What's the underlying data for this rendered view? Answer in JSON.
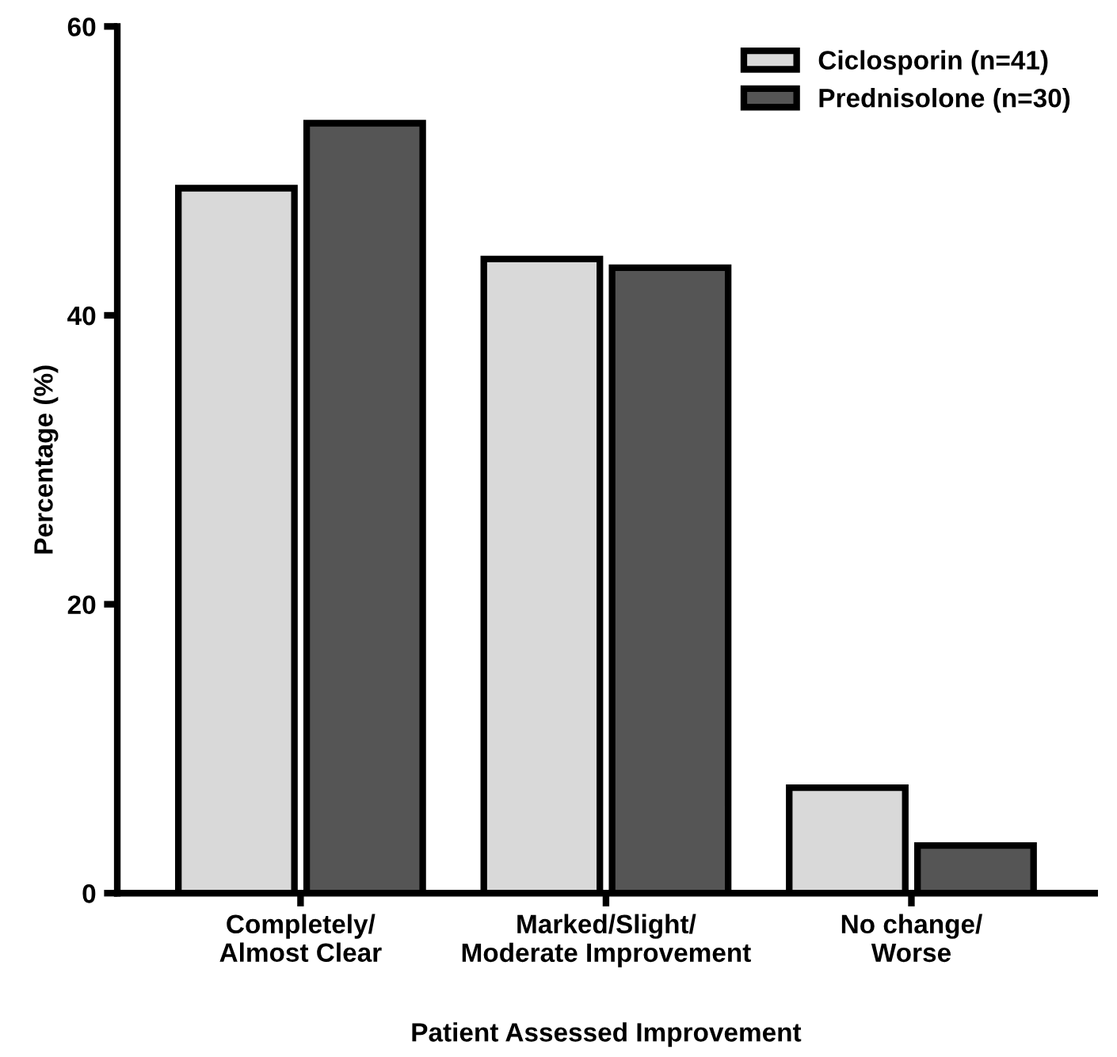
{
  "chart_data": {
    "type": "bar",
    "xlabel": "Patient Assessed Improvement",
    "ylabel": "Percentage (%)",
    "categories": [
      "Completely/\nAlmost Clear",
      "Marked/Slight/\nModerate Improvement",
      "No change/\nWorse"
    ],
    "series": [
      {
        "name": "Ciclosporin (n=41)",
        "color": "#d9d9d9",
        "values": [
          48.8,
          43.9,
          7.3
        ]
      },
      {
        "name": "Prednisolone (n=30)",
        "color": "#555555",
        "values": [
          53.3,
          43.3,
          3.3
        ]
      }
    ],
    "ylim": [
      0,
      60
    ],
    "yticks": [
      0,
      20,
      40,
      60
    ],
    "grid": false,
    "legend": "top right"
  }
}
